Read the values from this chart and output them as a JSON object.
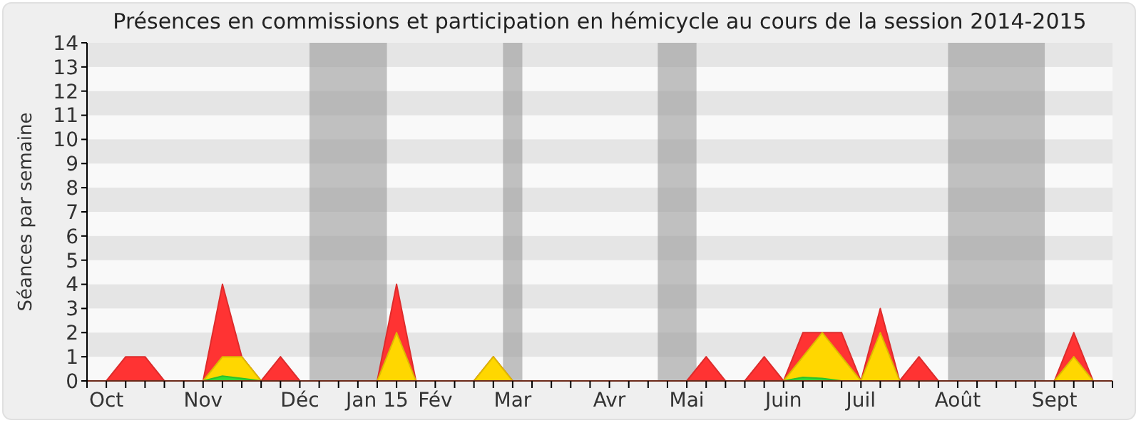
{
  "chart_data": {
    "type": "area",
    "title": "Présences en commissions et participation en hémicycle au cours de la session 2014-2015",
    "ylabel": "Séances par semaine",
    "categories": [
      null,
      "Oct",
      null,
      null,
      null,
      null,
      "Nov",
      null,
      null,
      null,
      null,
      "Déc",
      null,
      null,
      null,
      "Jan 15",
      null,
      null,
      "Fév",
      null,
      null,
      null,
      "Mar",
      null,
      null,
      null,
      null,
      "Avr",
      null,
      null,
      null,
      "Mai",
      null,
      null,
      null,
      null,
      "Juin",
      null,
      null,
      null,
      "Juil",
      null,
      null,
      null,
      null,
      "Août",
      null,
      null,
      null,
      null,
      "Sept",
      null,
      null,
      null
    ],
    "series": [
      {
        "color": "#ff3333",
        "values": [
          0,
          0,
          1,
          1,
          0,
          0,
          0,
          4,
          1,
          0,
          1,
          0,
          0,
          0,
          0,
          0,
          4,
          0,
          0,
          0,
          0,
          1,
          0,
          0,
          0,
          0,
          0,
          0,
          0,
          0,
          0,
          0,
          1,
          0,
          0,
          1,
          0,
          2,
          2,
          2,
          0,
          3,
          0,
          1,
          0,
          0,
          0,
          0,
          0,
          0,
          0,
          2,
          0,
          0
        ]
      },
      {
        "color": "#ffd700",
        "values": [
          0,
          0,
          0,
          0,
          0,
          0,
          0,
          1,
          1,
          0,
          0,
          0,
          0,
          0,
          0,
          0,
          2,
          0,
          0,
          0,
          0,
          1,
          0,
          0,
          0,
          0,
          0,
          0,
          0,
          0,
          0,
          0,
          0,
          0,
          0,
          0,
          0,
          1,
          2,
          1,
          0,
          2,
          0,
          0,
          0,
          0,
          0,
          0,
          0,
          0,
          0,
          1,
          0,
          0
        ]
      },
      {
        "color": "#33dd33",
        "values": [
          0,
          0,
          0,
          0,
          0,
          0,
          0,
          0.2,
          0.1,
          0,
          0,
          0,
          0,
          0,
          0,
          0,
          0,
          0,
          0,
          0,
          0,
          0,
          0,
          0,
          0,
          0,
          0,
          0,
          0,
          0,
          0,
          0,
          0,
          0,
          0,
          0,
          0,
          0.15,
          0.1,
          0,
          0,
          0,
          0,
          0,
          0,
          0,
          0,
          0,
          0,
          0,
          0,
          0,
          0,
          0
        ]
      }
    ],
    "ylim": [
      0,
      14
    ],
    "yticks": [
      0,
      1,
      2,
      3,
      4,
      5,
      6,
      7,
      8,
      9,
      10,
      11,
      12,
      13,
      14
    ],
    "grid": false
  }
}
